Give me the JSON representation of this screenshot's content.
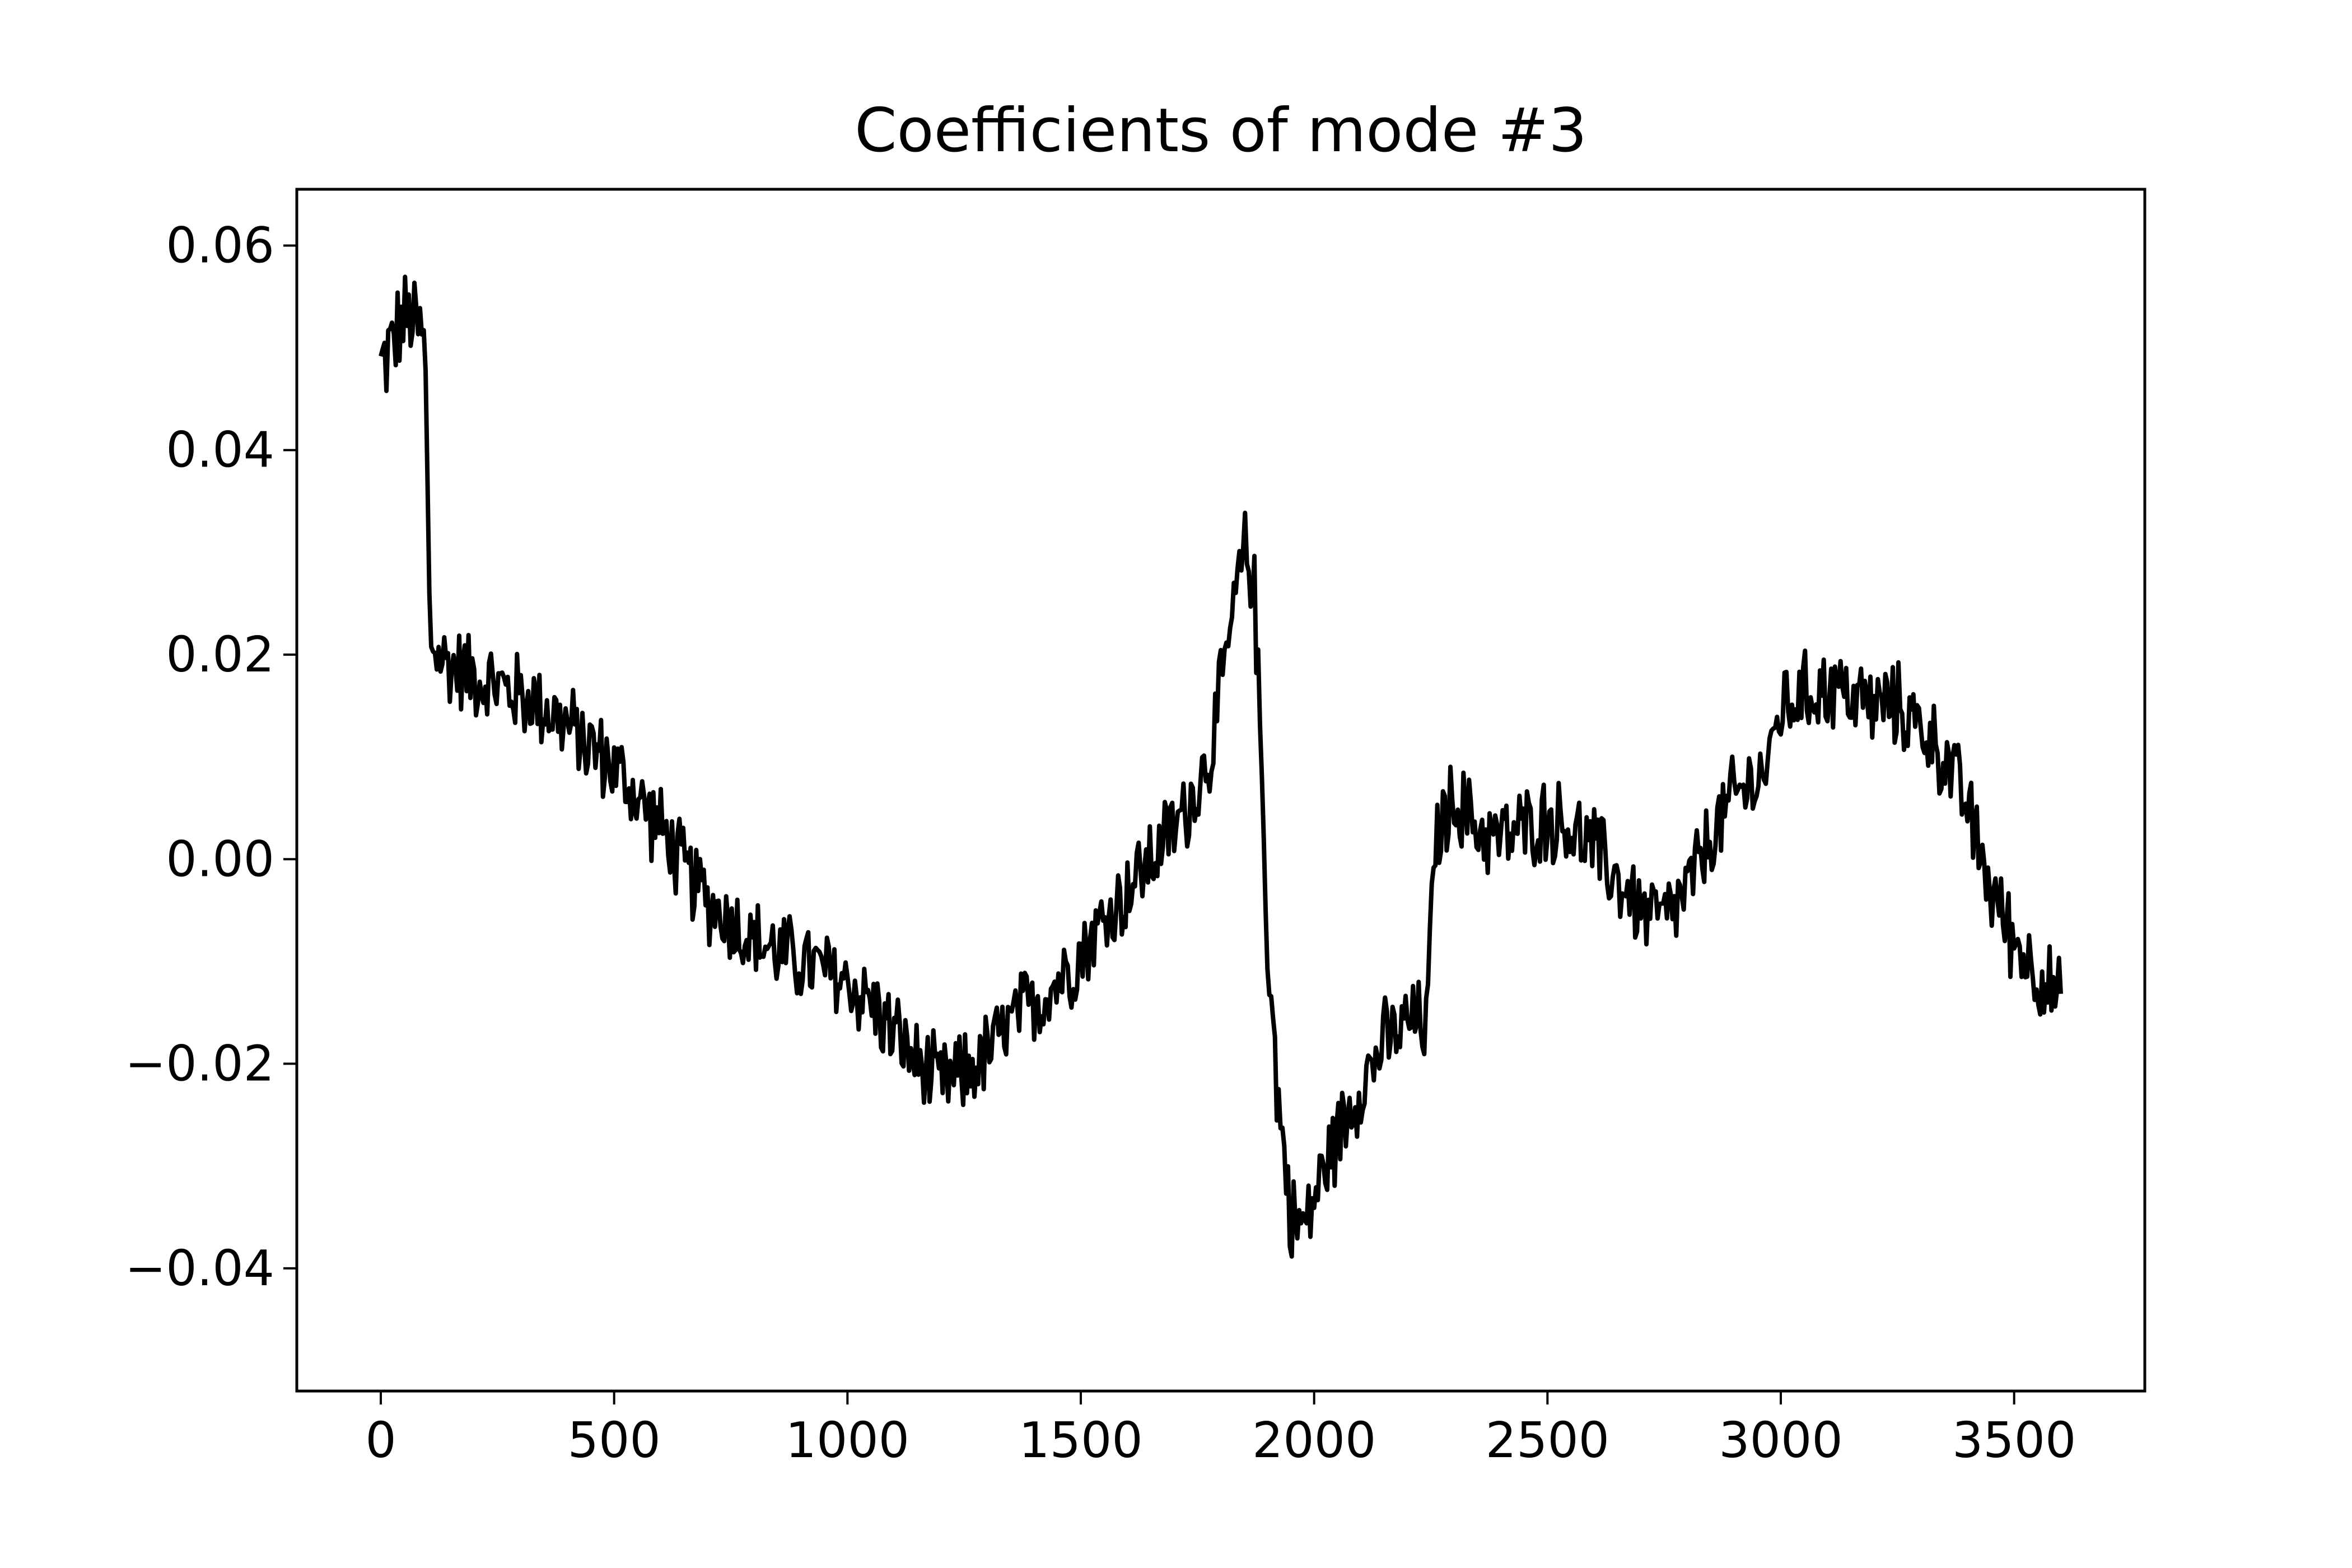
{
  "chart_data": {
    "type": "line",
    "title": "Coefficients of mode #3",
    "xlabel": "",
    "ylabel": "",
    "xlim": [
      -180,
      3780
    ],
    "ylim": [
      -0.052,
      0.0655
    ],
    "xticks": [
      0,
      500,
      1000,
      1500,
      2000,
      2500,
      3000,
      3500
    ],
    "xtick_labels": [
      "0",
      "500",
      "1000",
      "1500",
      "2000",
      "2500",
      "3000",
      "3500"
    ],
    "yticks": [
      -0.04,
      -0.02,
      0.0,
      0.02,
      0.04,
      0.06
    ],
    "ytick_labels": [
      "−0.04",
      "−0.02",
      "0.00",
      "0.02",
      "0.04",
      "0.06"
    ],
    "grid": false,
    "legend": "none",
    "series": [
      {
        "color": "#000000",
        "x": [
          0,
          20,
          40,
          60,
          80,
          95,
          100,
          105,
          120,
          150,
          200,
          250,
          300,
          350,
          400,
          450,
          500,
          550,
          600,
          650,
          700,
          750,
          800,
          850,
          900,
          950,
          1000,
          1050,
          1100,
          1150,
          1200,
          1250,
          1300,
          1350,
          1400,
          1450,
          1500,
          1550,
          1600,
          1650,
          1700,
          1750,
          1780,
          1800,
          1830,
          1850,
          1870,
          1880,
          1890,
          1900,
          1920,
          1950,
          1980,
          2000,
          2050,
          2100,
          2150,
          2200,
          2240,
          2250,
          2260,
          2300,
          2350,
          2400,
          2450,
          2500,
          2550,
          2600,
          2650,
          2700,
          2750,
          2800,
          2850,
          2900,
          2950,
          2980,
          3000,
          3050,
          3100,
          3150,
          3200,
          3250,
          3300,
          3350,
          3400,
          3450,
          3500,
          3550,
          3600
        ],
        "y": [
          0.048,
          0.05,
          0.052,
          0.053,
          0.052,
          0.05,
          0.036,
          0.022,
          0.02,
          0.019,
          0.018,
          0.017,
          0.016,
          0.015,
          0.013,
          0.011,
          0.009,
          0.006,
          0.003,
          -0.001,
          -0.004,
          -0.006,
          -0.008,
          -0.009,
          -0.01,
          -0.011,
          -0.012,
          -0.014,
          -0.017,
          -0.02,
          -0.022,
          -0.021,
          -0.019,
          -0.016,
          -0.014,
          -0.012,
          -0.009,
          -0.006,
          -0.003,
          0.0,
          0.003,
          0.007,
          0.011,
          0.016,
          0.025,
          0.03,
          0.028,
          0.018,
          0.005,
          -0.008,
          -0.022,
          -0.035,
          -0.036,
          -0.033,
          -0.027,
          -0.022,
          -0.018,
          -0.016,
          -0.016,
          -0.008,
          0.002,
          0.006,
          0.003,
          0.002,
          0.003,
          0.004,
          0.003,
          0.001,
          -0.002,
          -0.005,
          -0.006,
          -0.003,
          0.002,
          0.006,
          0.008,
          0.01,
          0.015,
          0.016,
          0.017,
          0.016,
          0.015,
          0.015,
          0.013,
          0.01,
          0.005,
          -0.003,
          -0.008,
          -0.011,
          -0.014
        ]
      }
    ]
  }
}
